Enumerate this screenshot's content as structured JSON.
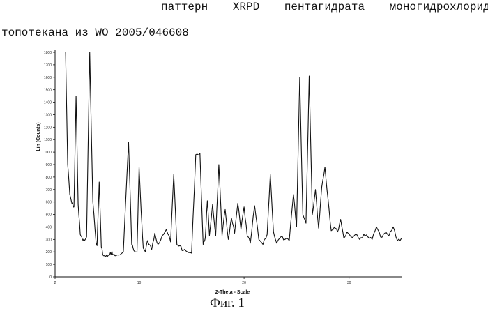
{
  "caption": {
    "line1": "паттерн XRPD пентагидрата моногидрохлорида",
    "line2": "топотекана из WO 2005/046608"
  },
  "figure_label": "Фиг. 1",
  "chart_data": {
    "type": "line",
    "title": "",
    "xlabel": "2-Theta - Scale",
    "ylabel": "Lin (Counts)",
    "xlim": [
      2,
      35
    ],
    "ylim": [
      0,
      1800
    ],
    "x_ticks": [
      2,
      10,
      20,
      30
    ],
    "x_tick_labels": [
      "2",
      "10",
      "20",
      "30"
    ],
    "y_ticks": [
      0,
      100,
      200,
      300,
      400,
      500,
      600,
      700,
      800,
      900,
      1000,
      1100,
      1200,
      1300,
      1400,
      1500,
      1600,
      1700,
      1800
    ],
    "y_tick_labels": [
      "0",
      "100",
      "200",
      "300",
      "400",
      "500",
      "600",
      "700",
      "800",
      "900",
      "1000",
      "1100",
      "1200",
      "1300",
      "1400",
      "1500",
      "1600",
      "1700",
      "1800"
    ],
    "grid": false,
    "series": [
      {
        "color": "#111111",
        "x": [
          3.0,
          3.2,
          3.4,
          3.6,
          3.8,
          4.0,
          4.2,
          4.4,
          4.6,
          4.8,
          5.0,
          5.3,
          5.6,
          5.9,
          6.0,
          6.2,
          6.4,
          6.6,
          6.8,
          6.9,
          7.0,
          7.2,
          7.4,
          7.5,
          7.7,
          8.0,
          8.5,
          9.0,
          9.3,
          9.5,
          9.8,
          10.0,
          10.2,
          10.4,
          10.6,
          10.8,
          11.2,
          11.5,
          11.8,
          12.2,
          12.6,
          13.0,
          13.3,
          13.6,
          13.9,
          14.2,
          14.6,
          15.0,
          15.4,
          15.8,
          16.1,
          16.3,
          16.5,
          16.7,
          17.0,
          17.3,
          17.6,
          17.9,
          18.2,
          18.5,
          18.8,
          19.1,
          19.4,
          19.7,
          20.0,
          20.3,
          20.6,
          21.0,
          21.4,
          21.8,
          22.2,
          22.5,
          22.8,
          23.1,
          23.5,
          23.9,
          24.3,
          24.7,
          25.0,
          25.3,
          25.6,
          25.9,
          26.2,
          26.5,
          26.8,
          27.1,
          27.4,
          27.7,
          28.0,
          28.3,
          28.6,
          28.9,
          29.2,
          29.5,
          29.8,
          30.2,
          30.6,
          31.0,
          31.4,
          31.8,
          32.2,
          32.6,
          33.0,
          33.4,
          33.8,
          34.2,
          34.6,
          35.0
        ],
        "y": [
          1800,
          900,
          660,
          590,
          560,
          1450,
          580,
          340,
          300,
          290,
          320,
          1800,
          600,
          280,
          250,
          760,
          240,
          170,
          160,
          170,
          165,
          175,
          200,
          180,
          170,
          175,
          200,
          1080,
          260,
          210,
          200,
          880,
          520,
          230,
          200,
          290,
          220,
          350,
          260,
          330,
          380,
          280,
          820,
          260,
          250,
          210,
          200,
          190,
          980,
          990,
          260,
          310,
          610,
          330,
          580,
          330,
          900,
          330,
          540,
          300,
          470,
          350,
          590,
          380,
          560,
          330,
          270,
          570,
          300,
          260,
          340,
          820,
          360,
          270,
          320,
          300,
          290,
          660,
          400,
          1600,
          500,
          430,
          1610,
          500,
          700,
          390,
          720,
          880,
          620,
          370,
          400,
          360,
          460,
          310,
          360,
          320,
          340,
          300,
          340,
          320,
          300,
          400,
          320,
          350,
          330,
          400,
          290,
          310
        ]
      }
    ]
  }
}
